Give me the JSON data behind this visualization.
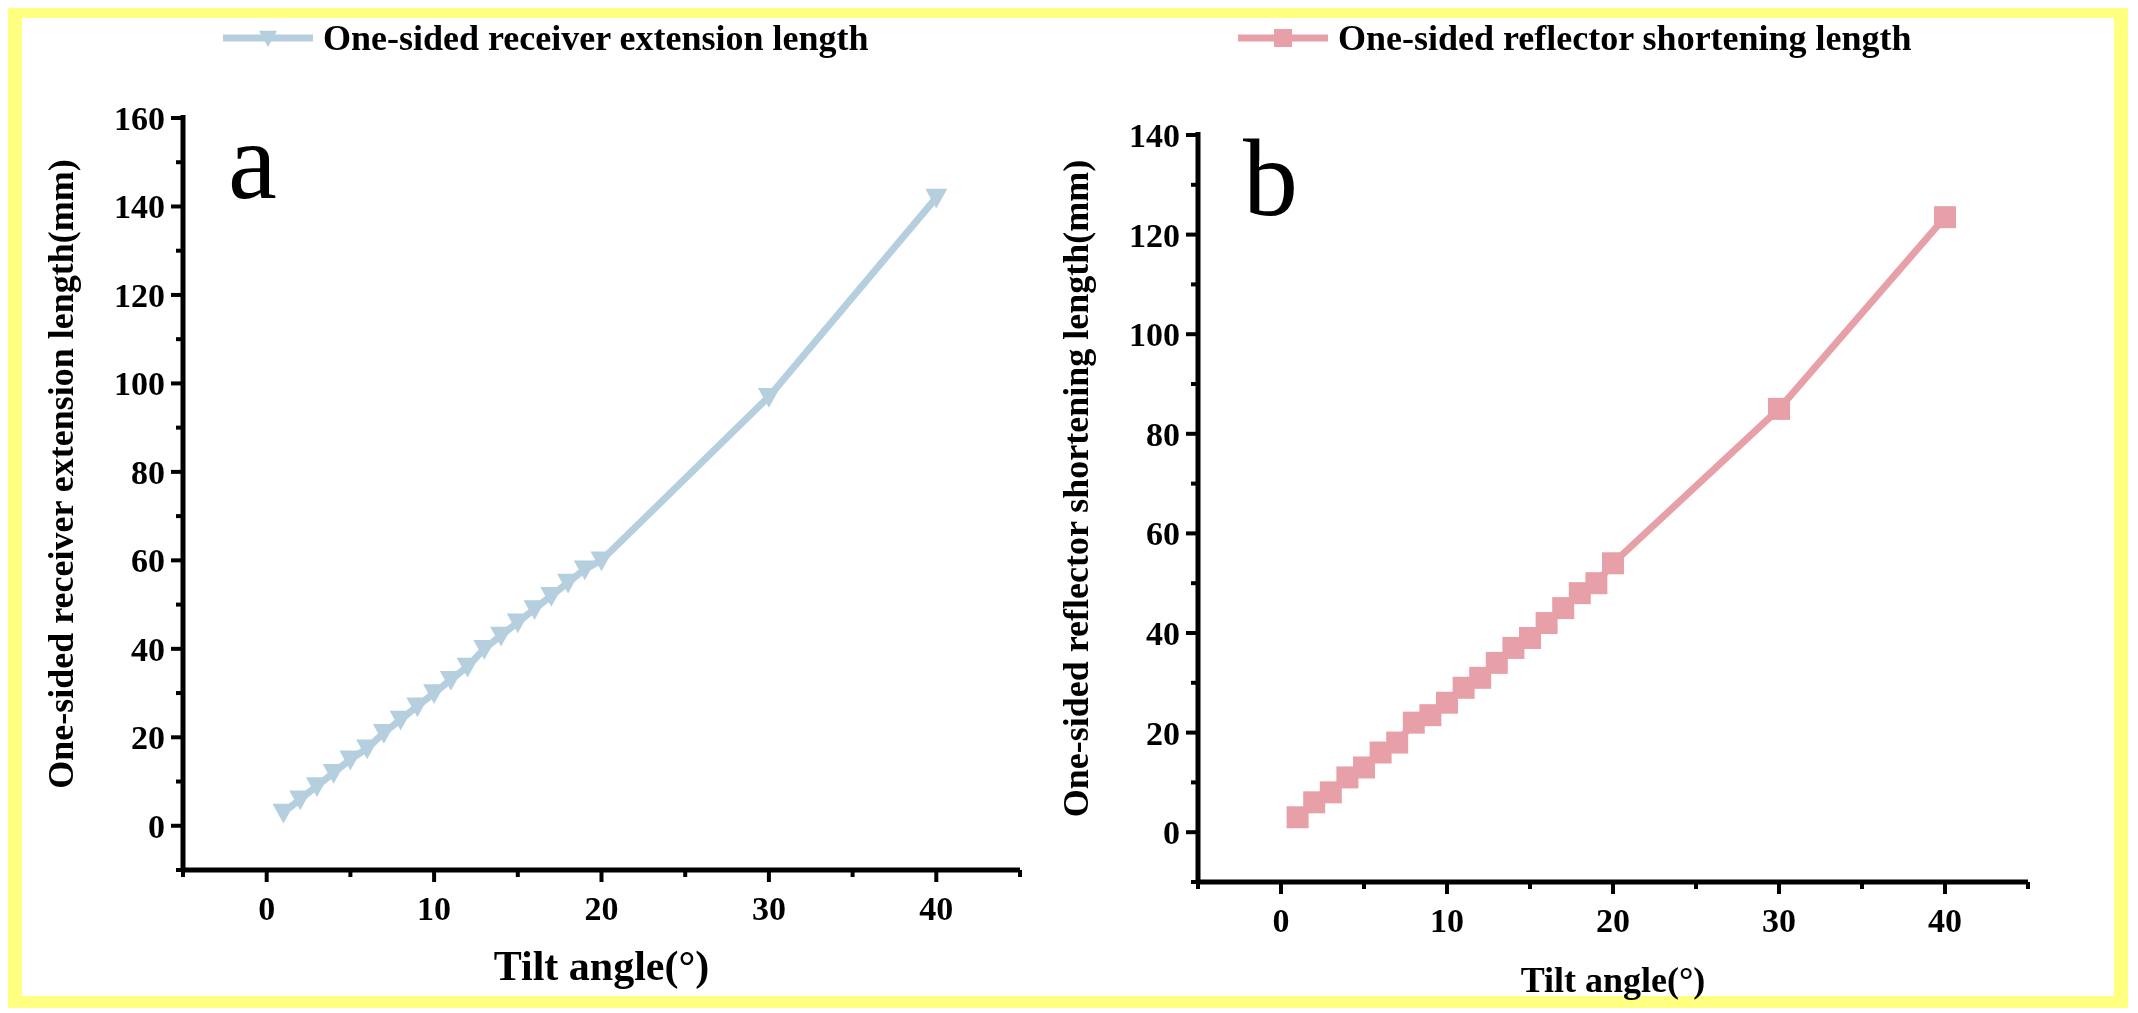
{
  "chart_data": [
    {
      "type": "line",
      "xlabel": "Tilt angle(°)",
      "ylabel": "One-sided receiver extension length(mm)",
      "annotations": [
        "a"
      ],
      "xlim": [
        -5,
        45
      ],
      "ylim": [
        -10,
        160
      ],
      "xticks": [
        0,
        10,
        20,
        30,
        40
      ],
      "yticks": [
        0,
        20,
        40,
        60,
        80,
        100,
        120,
        140,
        160
      ],
      "grid": false,
      "legend": "top",
      "marker": "triangle",
      "line_style": "solid",
      "series": [
        {
          "name": "One-sided receiver extension length",
          "color": "#b5cfdf",
          "x": [
            1,
            2,
            3,
            4,
            5,
            6,
            7,
            8,
            9,
            10,
            11,
            12,
            13,
            14,
            15,
            16,
            17,
            18,
            19,
            20,
            30,
            40
          ],
          "values": [
            3,
            6,
            9,
            12,
            15,
            17.5,
            21,
            24,
            27,
            30,
            33,
            36,
            40,
            43,
            46,
            49,
            52,
            55,
            58,
            60,
            97,
            142
          ]
        }
      ]
    },
    {
      "type": "line",
      "xlabel": "Tilt angle(°)",
      "ylabel": "One-sided reflector shortening length(mm)",
      "annotations": [
        "b"
      ],
      "xlim": [
        -5,
        45
      ],
      "ylim": [
        -10,
        140
      ],
      "xticks": [
        0,
        10,
        20,
        30,
        40
      ],
      "yticks": [
        0,
        20,
        40,
        60,
        80,
        100,
        120,
        140
      ],
      "grid": false,
      "legend": "top",
      "marker": "square",
      "line_style": "solid",
      "series": [
        {
          "name": "One-sided reflector shortening length",
          "color": "#e8a0a8",
          "x": [
            1,
            2,
            3,
            4,
            5,
            6,
            7,
            8,
            9,
            10,
            11,
            12,
            13,
            14,
            15,
            16,
            17,
            18,
            19,
            20,
            30,
            40
          ],
          "values": [
            3,
            6,
            8,
            11,
            13,
            16,
            18,
            22,
            23.5,
            26,
            29,
            31,
            34,
            37,
            39,
            42,
            45,
            48,
            50,
            54,
            85,
            123.5
          ]
        }
      ]
    }
  ]
}
